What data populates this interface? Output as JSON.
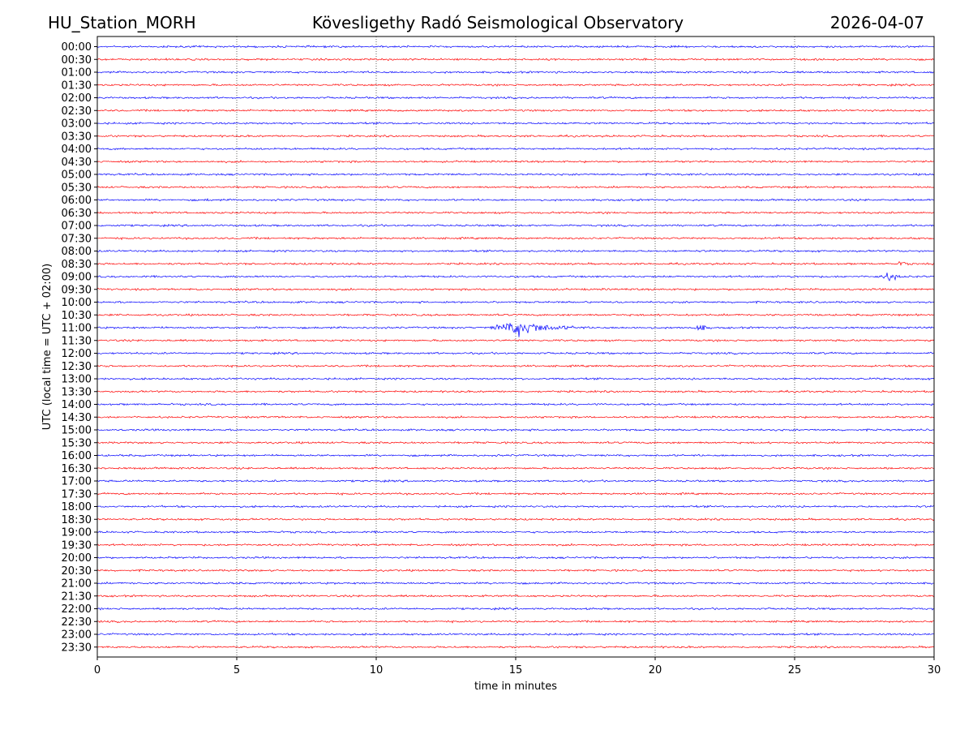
{
  "header": {
    "station": "HU_Station_MORH",
    "observatory": "Kövesligethy Radó Seismological Observatory",
    "date": "2026-04-07"
  },
  "chart_data": {
    "type": "line",
    "title": "Kövesligethy Radó Seismological Observatory",
    "xlabel": "time in minutes",
    "ylabel": "UTC (local time = UTC + 02:00)",
    "xlim": [
      0,
      30
    ],
    "x_ticks": [
      0,
      5,
      10,
      15,
      20,
      25,
      30
    ],
    "grid": "vertical dotted at x ticks",
    "series_colors": [
      "#0000ff",
      "#ff0000"
    ],
    "rows": [
      "00:00",
      "00:30",
      "01:00",
      "01:30",
      "02:00",
      "02:30",
      "03:00",
      "03:30",
      "04:00",
      "04:30",
      "05:00",
      "05:30",
      "06:00",
      "06:30",
      "07:00",
      "07:30",
      "08:00",
      "08:30",
      "09:00",
      "09:30",
      "10:00",
      "10:30",
      "11:00",
      "11:30",
      "12:00",
      "12:30",
      "13:00",
      "13:30",
      "14:00",
      "14:30",
      "15:00",
      "15:30",
      "16:00",
      "16:30",
      "17:00",
      "17:30",
      "18:00",
      "18:30",
      "19:00",
      "19:30",
      "20:00",
      "20:30",
      "21:00",
      "21:30",
      "22:00",
      "22:30",
      "23:00",
      "23:30"
    ],
    "noise_level": 1.0,
    "events": [
      {
        "row": "11:00",
        "start": 14.0,
        "peak": 15.2,
        "end": 17.6,
        "amplitude": 8
      },
      {
        "row": "11:00",
        "start": 21.4,
        "peak": 21.6,
        "end": 22.0,
        "amplitude": 5
      },
      {
        "row": "09:00",
        "start": 27.9,
        "peak": 28.5,
        "end": 29.0,
        "amplitude": 4
      },
      {
        "row": "08:30",
        "start": 28.7,
        "peak": 28.9,
        "end": 29.1,
        "amplitude": 3.5
      },
      {
        "row": "02:00",
        "start": 11.8,
        "peak": 11.9,
        "end": 12.0,
        "amplitude": 2
      },
      {
        "row": "06:00",
        "start": 3.9,
        "peak": 4.0,
        "end": 4.1,
        "amplitude": 2
      }
    ]
  }
}
